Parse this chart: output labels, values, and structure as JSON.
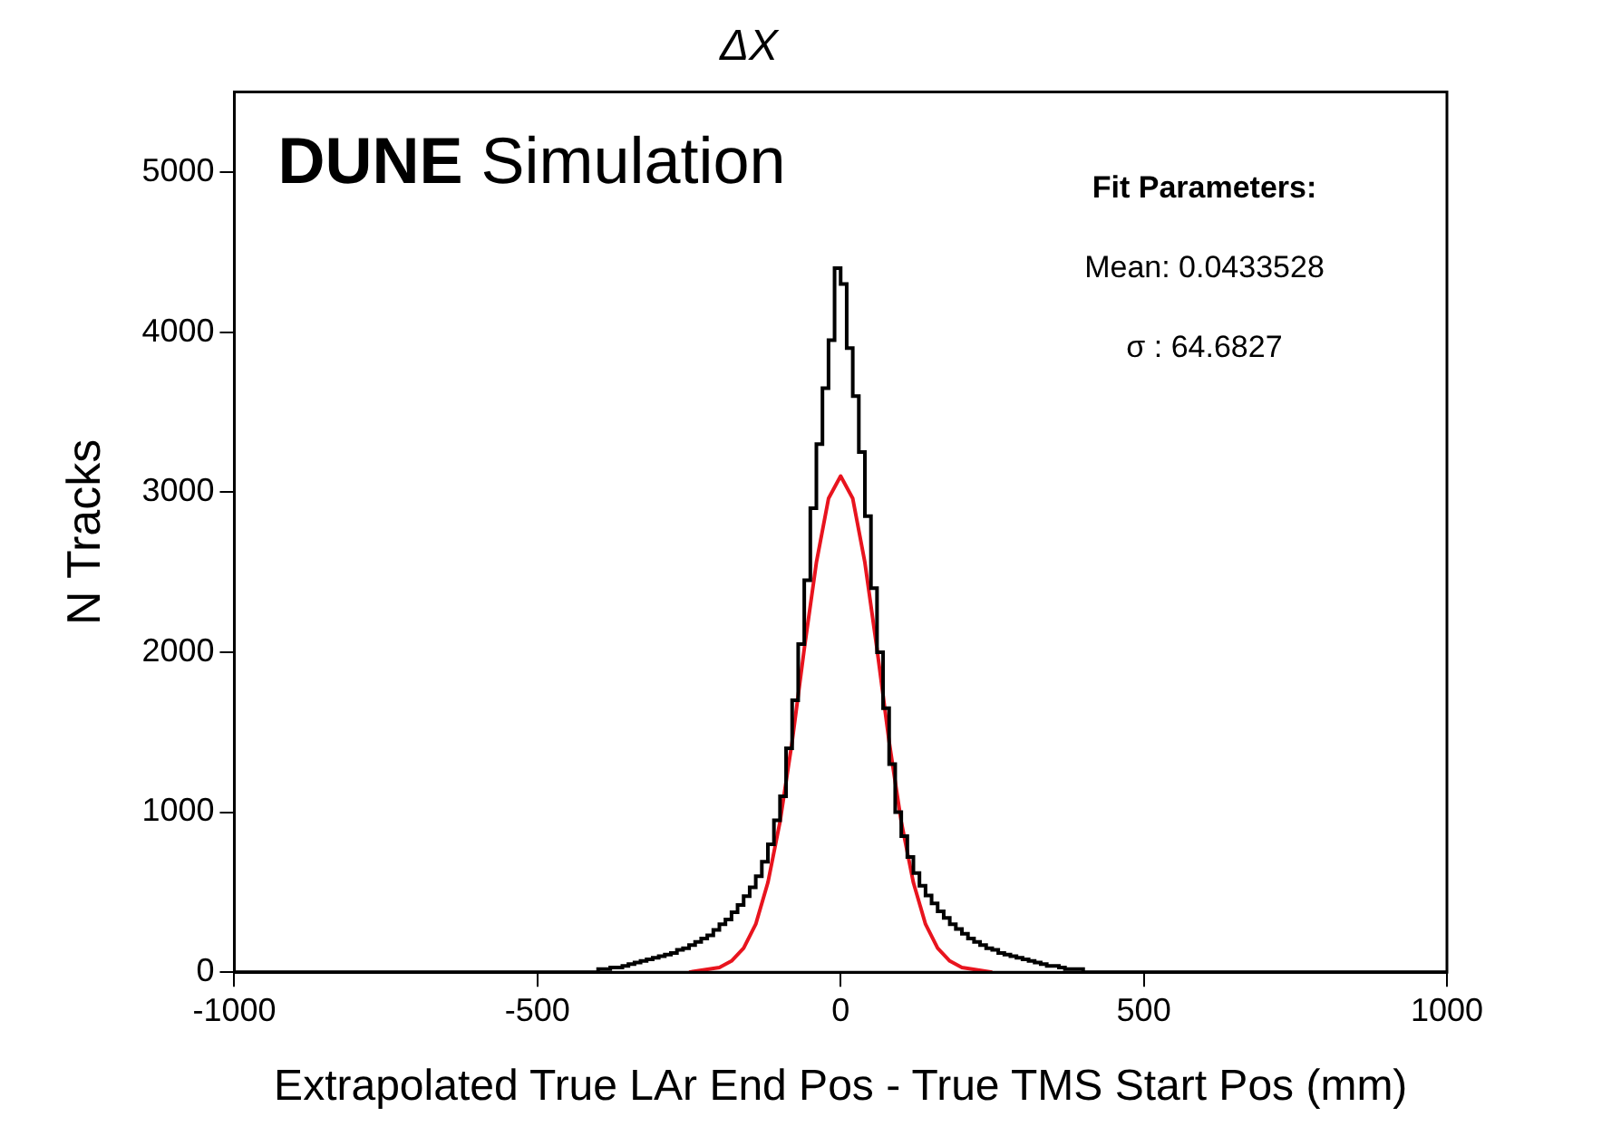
{
  "chart_data": {
    "type": "histogram",
    "title": "ΔX",
    "xlabel": "Extrapolated True LAr End Pos - True TMS Start Pos (mm)",
    "ylabel": "N Tracks",
    "annotations": [
      "DUNE Simulation",
      "Fit Parameters:",
      "Mean: 0.0433528",
      "σ : 64.6827"
    ],
    "bins": [
      -1000,
      -400,
      -390,
      -380,
      -370,
      -360,
      -350,
      -340,
      -330,
      -320,
      -310,
      -300,
      -290,
      -280,
      -270,
      -260,
      -250,
      -240,
      -230,
      -220,
      -210,
      -200,
      -190,
      -180,
      -170,
      -160,
      -150,
      -140,
      -130,
      -120,
      -110,
      -100,
      -90,
      -80,
      -70,
      -60,
      -50,
      -40,
      -30,
      -20,
      -10,
      0,
      10,
      20,
      30,
      40,
      50,
      60,
      70,
      80,
      90,
      100,
      110,
      120,
      130,
      140,
      150,
      160,
      170,
      180,
      190,
      200,
      210,
      220,
      230,
      240,
      250,
      260,
      270,
      280,
      290,
      300,
      310,
      320,
      330,
      340,
      350,
      360,
      370,
      380,
      390,
      400,
      1000
    ],
    "series": [
      {
        "color": "#000000",
        "values": [
          0,
          20,
          20,
          30,
          30,
          40,
          50,
          60,
          70,
          80,
          90,
          100,
          110,
          120,
          140,
          150,
          170,
          190,
          210,
          230,
          265,
          300,
          330,
          375,
          420,
          475,
          530,
          600,
          690,
          800,
          950,
          1100,
          1400,
          1700,
          2050,
          2450,
          2900,
          3300,
          3650,
          3950,
          4400,
          4300,
          3900,
          3600,
          3250,
          2850,
          2400,
          2000,
          1650,
          1300,
          1000,
          850,
          720,
          620,
          540,
          480,
          430,
          380,
          340,
          300,
          270,
          240,
          210,
          190,
          170,
          150,
          140,
          120,
          110,
          100,
          90,
          80,
          70,
          60,
          50,
          40,
          40,
          30,
          20,
          20,
          20,
          0
        ]
      },
      {
        "type": "line",
        "color": "#e8141e",
        "x": [
          -250,
          -200,
          -180,
          -160,
          -140,
          -120,
          -100,
          -80,
          -60,
          -40,
          -20,
          0,
          20,
          40,
          60,
          80,
          100,
          120,
          140,
          160,
          180,
          200,
          250
        ],
        "values": [
          0,
          30,
          70,
          150,
          300,
          560,
          940,
          1440,
          2020,
          2560,
          2960,
          3100,
          2960,
          2560,
          2020,
          1440,
          940,
          560,
          300,
          150,
          70,
          30,
          0
        ]
      }
    ],
    "xlim": [
      -1000,
      1000
    ],
    "xticks": [
      -1000,
      -500,
      0,
      500,
      1000
    ],
    "ylim": [
      0,
      5500
    ],
    "yticks": [
      0,
      1000,
      2000,
      3000,
      4000,
      5000
    ],
    "grid": false,
    "legend": false,
    "marker": "none",
    "line_style": "solid"
  }
}
